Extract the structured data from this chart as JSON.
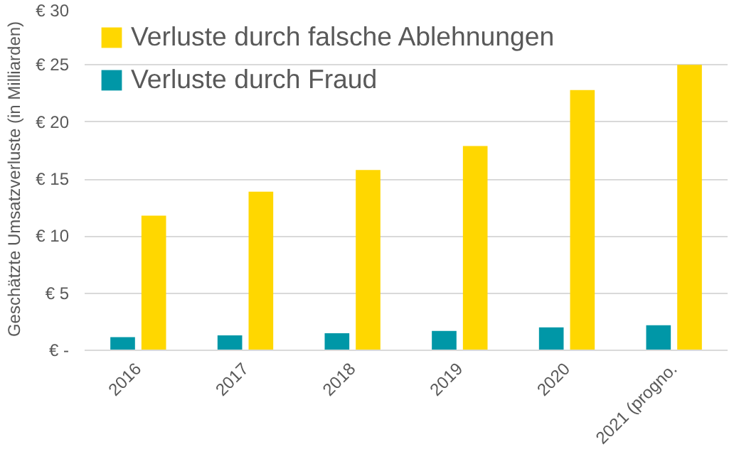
{
  "chart_data": {
    "type": "bar",
    "ylabel": "Geschätzte Umsatzverluste (in Milliarden)",
    "categories": [
      "2016",
      "2017",
      "2018",
      "2019",
      "2020",
      "2021 (progno."
    ],
    "series": [
      {
        "name": "Verluste durch Fraud",
        "color": "#0097a7",
        "values": [
          1.15,
          1.3,
          1.5,
          1.7,
          2.0,
          2.2
        ]
      },
      {
        "name": "Verluste durch falsche Ablehnungen",
        "color": "#ffd700",
        "values": [
          11.8,
          13.9,
          15.8,
          17.9,
          22.8,
          25.0
        ]
      }
    ],
    "ylim": [
      0,
      30
    ],
    "yticks": [
      {
        "value": 0,
        "label": "€ -"
      },
      {
        "value": 5,
        "label": "€ 5"
      },
      {
        "value": 10,
        "label": "€ 10"
      },
      {
        "value": 15,
        "label": "€ 15"
      },
      {
        "value": 20,
        "label": "€ 20"
      },
      {
        "value": 25,
        "label": "€ 25"
      },
      {
        "value": 30,
        "label": "€ 30"
      }
    ],
    "grid": "y",
    "legend": "top left"
  }
}
